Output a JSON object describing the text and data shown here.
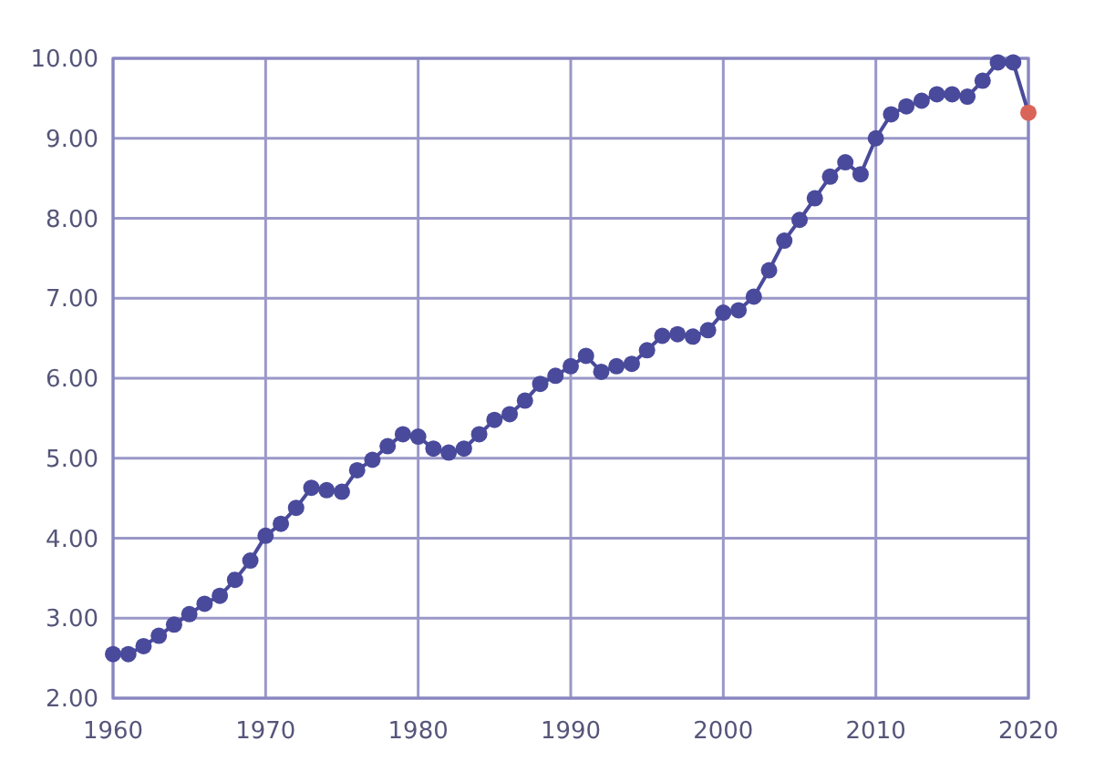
{
  "chart_data": {
    "type": "line",
    "x": [
      1960,
      1961,
      1962,
      1963,
      1964,
      1965,
      1966,
      1967,
      1968,
      1969,
      1970,
      1971,
      1972,
      1973,
      1974,
      1975,
      1976,
      1977,
      1978,
      1979,
      1980,
      1981,
      1982,
      1983,
      1984,
      1985,
      1986,
      1987,
      1988,
      1989,
      1990,
      1991,
      1992,
      1993,
      1994,
      1995,
      1996,
      1997,
      1998,
      1999,
      2000,
      2001,
      2002,
      2003,
      2004,
      2005,
      2006,
      2007,
      2008,
      2009,
      2010,
      2011,
      2012,
      2013,
      2014,
      2015,
      2016,
      2017,
      2018,
      2019,
      2020
    ],
    "series": [
      {
        "color": "#4a4a9c",
        "colors": [
          "#4a4a9c",
          "#4a4a9c",
          "#4a4a9c",
          "#4a4a9c",
          "#4a4a9c",
          "#4a4a9c",
          "#4a4a9c",
          "#4a4a9c",
          "#4a4a9c",
          "#4a4a9c",
          "#4a4a9c",
          "#4a4a9c",
          "#4a4a9c",
          "#4a4a9c",
          "#4a4a9c",
          "#4a4a9c",
          "#4a4a9c",
          "#4a4a9c",
          "#4a4a9c",
          "#4a4a9c",
          "#4a4a9c",
          "#4a4a9c",
          "#4a4a9c",
          "#4a4a9c",
          "#4a4a9c",
          "#4a4a9c",
          "#4a4a9c",
          "#4a4a9c",
          "#4a4a9c",
          "#4a4a9c",
          "#4a4a9c",
          "#4a4a9c",
          "#4a4a9c",
          "#4a4a9c",
          "#4a4a9c",
          "#4a4a9c",
          "#4a4a9c",
          "#4a4a9c",
          "#4a4a9c",
          "#4a4a9c",
          "#4a4a9c",
          "#4a4a9c",
          "#4a4a9c",
          "#4a4a9c",
          "#4a4a9c",
          "#4a4a9c",
          "#4a4a9c",
          "#4a4a9c",
          "#4a4a9c",
          "#4a4a9c",
          "#4a4a9c",
          "#4a4a9c",
          "#4a4a9c",
          "#4a4a9c",
          "#4a4a9c",
          "#4a4a9c",
          "#4a4a9c",
          "#4a4a9c",
          "#4a4a9c",
          "#4a4a9c",
          "#d9645a"
        ],
        "values": [
          2.55,
          2.55,
          2.65,
          2.78,
          2.92,
          3.05,
          3.18,
          3.28,
          3.48,
          3.72,
          4.03,
          4.18,
          4.38,
          4.63,
          4.6,
          4.58,
          4.85,
          4.98,
          5.15,
          5.3,
          5.27,
          5.12,
          5.07,
          5.12,
          5.3,
          5.48,
          5.55,
          5.72,
          5.93,
          6.03,
          6.15,
          6.28,
          6.08,
          6.15,
          6.18,
          6.35,
          6.53,
          6.55,
          6.52,
          6.6,
          6.82,
          6.85,
          7.02,
          7.35,
          7.72,
          7.98,
          8.25,
          8.52,
          8.7,
          8.55,
          9.0,
          9.3,
          9.4,
          9.47,
          9.55,
          9.55,
          9.52,
          9.72,
          9.95,
          9.95,
          9.32
        ]
      }
    ],
    "xlim": [
      1960,
      2020
    ],
    "xticks": [
      1960,
      1970,
      1980,
      1990,
      2000,
      2010,
      2020
    ],
    "ylim": [
      2,
      10
    ],
    "yticks": [
      {
        "value": 2,
        "label": "2.00"
      },
      {
        "value": 3,
        "label": "3.00"
      },
      {
        "value": 4,
        "label": "4.00"
      },
      {
        "value": 5,
        "label": "5.00"
      },
      {
        "value": 6,
        "label": "6.00"
      },
      {
        "value": 7,
        "label": "7.00"
      },
      {
        "value": 8,
        "label": "8.00"
      },
      {
        "value": 9,
        "label": "9.00"
      },
      {
        "value": 10,
        "label": "10.00"
      }
    ],
    "grid": true,
    "marker": "circle",
    "line_style": "solid"
  }
}
